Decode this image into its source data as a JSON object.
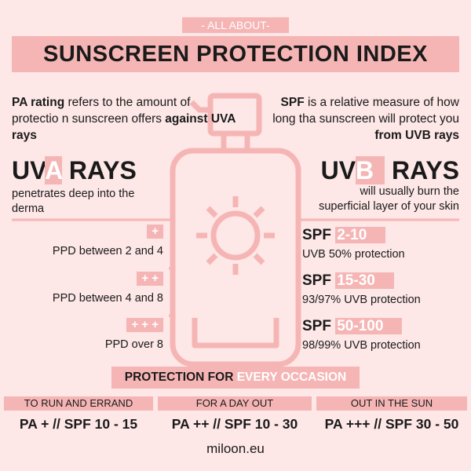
{
  "header": {
    "kicker": "- ALL ABOUT-",
    "title": "SUNSCREEN PROTECTION INDEX"
  },
  "pa_intro": {
    "bold_start": "PA rating",
    "text": " refers to the amount of protectio n sunscreen offers ",
    "bold_end": "against UVA rays"
  },
  "spf_intro": {
    "bold_start": "SPF",
    "text": " is a relative measure of how long tha sunscreen will protect you ",
    "bold_end": "from UVB rays"
  },
  "uva": {
    "prefix": "UV",
    "letter": "A",
    "suffix": "RAYS",
    "description": "penetrates deep into the derma"
  },
  "uvb": {
    "prefix": "UV",
    "letter": "B",
    "suffix": "RAYS",
    "description": "will usually burn the superficial layer of your skin"
  },
  "pa_levels": [
    {
      "symbol": "+",
      "label": "PPD between 2 and 4"
    },
    {
      "symbol": "+ +",
      "label": "PPD between 4 and 8"
    },
    {
      "symbol": "+ + +",
      "label": "PPD over 8"
    }
  ],
  "spf_levels": [
    {
      "prefix": "SPF",
      "range": "2-10",
      "label": "UVB 50% protection"
    },
    {
      "prefix": "SPF",
      "range": "15-30",
      "label": "93/97% UVB protection"
    },
    {
      "prefix": "SPF",
      "range": "50-100",
      "label": "98/99% UVB protection"
    }
  ],
  "occasion": {
    "title_start": "PROTECTION FOR",
    "title_end": "EVERY OCCASION",
    "items": [
      {
        "label": "TO RUN AND ERRAND",
        "value": "PA + // SPF 10 - 15"
      },
      {
        "label": "FOR A DAY OUT",
        "value": "PA ++ // SPF 10 - 30"
      },
      {
        "label": "OUT IN THE SUN",
        "value": "PA +++ // SPF 30 - 50"
      }
    ]
  },
  "footer": "miloon.eu"
}
